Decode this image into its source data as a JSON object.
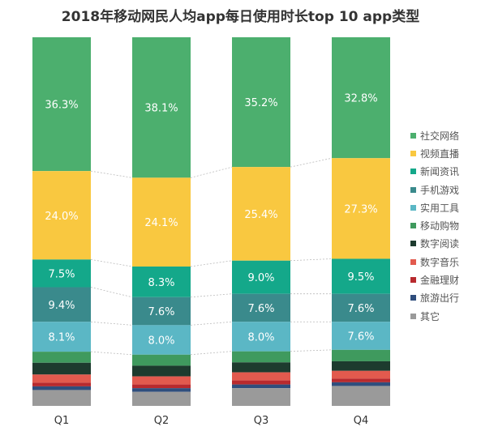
{
  "chart_data": {
    "type": "bar",
    "stacked": true,
    "orientation": "vertical",
    "title": "2018年移动网民人均app每日使用时长top 10 app类型",
    "categories": [
      "Q1",
      "Q2",
      "Q3",
      "Q4"
    ],
    "legend_position": "right",
    "grid": false,
    "ylim": [
      0,
      100
    ],
    "series": [
      {
        "name": "社交网络",
        "color": "#4caf6e",
        "values": [
          36.3,
          38.1,
          35.2,
          32.8
        ],
        "labels": [
          "36.3%",
          "38.1%",
          "35.2%",
          "32.8%"
        ]
      },
      {
        "name": "视频直播",
        "color": "#f9c840",
        "values": [
          24.0,
          24.1,
          25.4,
          27.3
        ],
        "labels": [
          "24.0%",
          "24.1%",
          "25.4%",
          "27.3%"
        ]
      },
      {
        "name": "新闻资讯",
        "color": "#14a88a",
        "values": [
          7.5,
          8.3,
          9.0,
          9.5
        ],
        "labels": [
          "7.5%",
          "8.3%",
          "9.0%",
          "9.5%"
        ]
      },
      {
        "name": "手机游戏",
        "color": "#3a8a8c",
        "values": [
          9.4,
          7.6,
          7.6,
          7.6
        ],
        "labels": [
          "9.4%",
          "7.6%",
          "7.6%",
          "7.6%"
        ]
      },
      {
        "name": "实用工具",
        "color": "#5bb7c5",
        "values": [
          8.1,
          8.0,
          8.0,
          7.6
        ],
        "labels": [
          "8.1%",
          "8.0%",
          "8.0%",
          "7.6%"
        ]
      },
      {
        "name": "移动购物",
        "color": "#3f9a5e",
        "values": [
          3.0,
          3.0,
          3.0,
          3.1
        ]
      },
      {
        "name": "数字阅读",
        "color": "#1d3b2e",
        "values": [
          3.2,
          2.9,
          2.7,
          2.6
        ]
      },
      {
        "name": "数字音乐",
        "color": "#e25a4e",
        "values": [
          2.2,
          2.2,
          2.2,
          2.1
        ]
      },
      {
        "name": "金融理财",
        "color": "#b82a2e",
        "values": [
          1.0,
          1.0,
          1.1,
          1.0
        ]
      },
      {
        "name": "旅游出行",
        "color": "#2f4e7d",
        "values": [
          1.0,
          1.0,
          1.0,
          1.0
        ]
      },
      {
        "name": "其它",
        "color": "#9a9a9a",
        "values": [
          4.3,
          3.8,
          4.8,
          5.4
        ]
      }
    ]
  }
}
